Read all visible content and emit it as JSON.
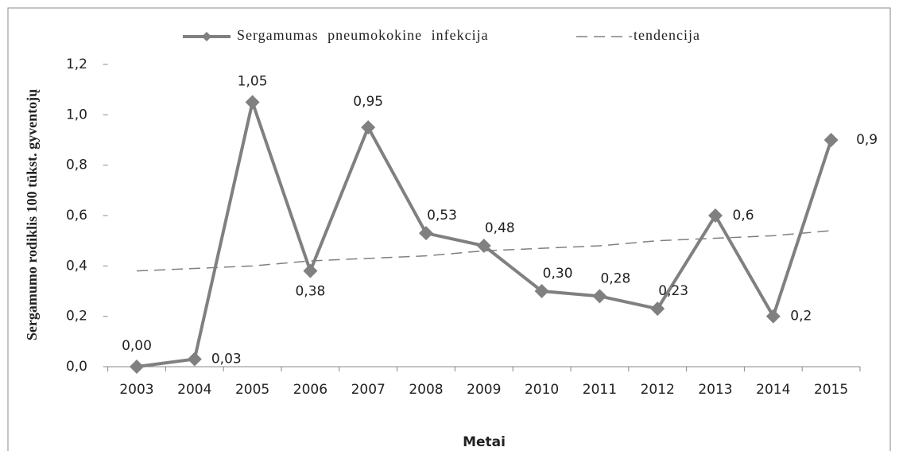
{
  "chart_data": {
    "type": "line",
    "x_label": "Metai",
    "y_label": "Sergamumo rodiklis 100 tūkst. gyventojų",
    "categories": [
      "2003",
      "2004",
      "2005",
      "2006",
      "2007",
      "2008",
      "2009",
      "2010",
      "2011",
      "2012",
      "2013",
      "2014",
      "2015"
    ],
    "series": [
      {
        "name": "Sergamumas pneumokokine infekcija",
        "color": "#808080",
        "values": [
          0.0,
          0.03,
          1.05,
          0.38,
          0.95,
          0.53,
          0.48,
          0.3,
          0.28,
          0.23,
          0.6,
          0.2,
          0.9
        ],
        "value_labels": [
          "0,00",
          "0,03",
          "1,05",
          "0,38",
          "0,95",
          "0,53",
          "0,48",
          "0,30",
          "0,28",
          "0,23",
          "0,6",
          "0,2",
          "0,9"
        ]
      },
      {
        "name": "tendencija",
        "color": "#808080",
        "dashed": true,
        "values": [
          0.38,
          0.39,
          0.4,
          0.42,
          0.43,
          0.44,
          0.46,
          0.47,
          0.48,
          0.5,
          0.51,
          0.52,
          0.54
        ]
      }
    ],
    "ylim": [
      0,
      1.2
    ],
    "yticks": [
      {
        "value": 0,
        "label": "0,0"
      },
      {
        "value": 0.2,
        "label": "0,2"
      },
      {
        "value": 0.4,
        "label": "0,4"
      },
      {
        "value": 0.6,
        "label": "0,6"
      },
      {
        "value": 0.8,
        "label": "0,8"
      },
      {
        "value": 1.0,
        "label": "1,0"
      },
      {
        "value": 1.2,
        "label": "1,2"
      }
    ],
    "legend": "top"
  }
}
